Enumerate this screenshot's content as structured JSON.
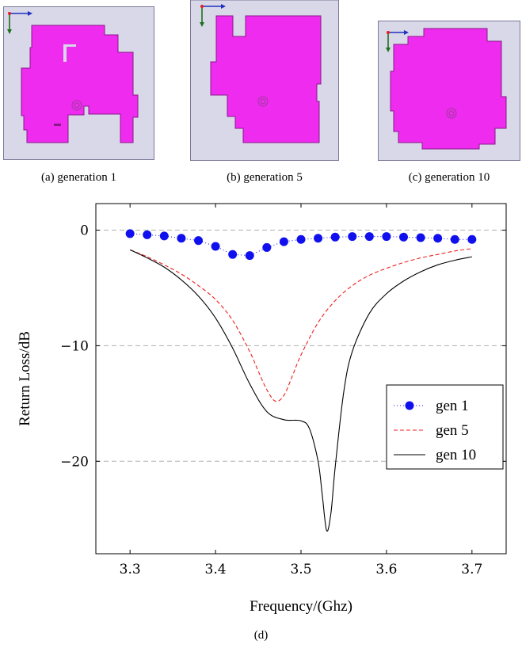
{
  "panels": [
    {
      "caption": "(a) generation 1"
    },
    {
      "caption": "(b) generation 5"
    },
    {
      "caption": "(c) generation 10"
    }
  ],
  "colors": {
    "panel_bg": "#d8d8e8",
    "panel_border": "#7a7a9a",
    "antenna": "#ee2bee",
    "antenna_edge": "#8a1a8a",
    "axis_x": "#2030c0",
    "axis_y": "#207020",
    "origin": "#e02020"
  },
  "chart_caption": "(d)",
  "chart_data": {
    "type": "line",
    "xlabel": "Frequency/(Ghz)",
    "ylabel": "Return Loss/dB",
    "xlim": [
      3.26,
      3.74
    ],
    "ylim": [
      -28,
      2.3
    ],
    "xticks": [
      3.3,
      3.4,
      3.5,
      3.6,
      3.7
    ],
    "xtick_labels": [
      "3.3",
      "3.4",
      "3.5",
      "3.6",
      "3.7"
    ],
    "yticks": [
      0,
      -10,
      -20
    ],
    "ytick_labels": [
      "0",
      "−10",
      "−20"
    ],
    "grid": "horizontal dashed",
    "legend_position": "right",
    "series": [
      {
        "name": "gen 1",
        "style": "dots",
        "color": "#1010ee",
        "x": [
          3.3,
          3.32,
          3.34,
          3.36,
          3.38,
          3.4,
          3.42,
          3.44,
          3.46,
          3.48,
          3.5,
          3.52,
          3.54,
          3.56,
          3.58,
          3.6,
          3.62,
          3.64,
          3.66,
          3.68,
          3.7
        ],
        "y": [
          -0.3,
          -0.4,
          -0.5,
          -0.7,
          -0.9,
          -1.4,
          -2.1,
          -2.2,
          -1.5,
          -1.0,
          -0.8,
          -0.7,
          -0.6,
          -0.55,
          -0.55,
          -0.55,
          -0.6,
          -0.65,
          -0.7,
          -0.8,
          -0.8
        ]
      },
      {
        "name": "gen 5",
        "style": "dashed",
        "color": "#ee2020",
        "x": [
          3.3,
          3.32,
          3.34,
          3.36,
          3.38,
          3.4,
          3.42,
          3.44,
          3.45,
          3.46,
          3.47,
          3.48,
          3.49,
          3.5,
          3.52,
          3.54,
          3.56,
          3.58,
          3.6,
          3.62,
          3.64,
          3.66,
          3.68,
          3.7
        ],
        "y": [
          -1.7,
          -2.3,
          -3.0,
          -3.8,
          -4.8,
          -6.0,
          -7.8,
          -10.5,
          -12.2,
          -13.8,
          -14.8,
          -14.3,
          -12.6,
          -10.8,
          -8.0,
          -6.1,
          -4.8,
          -3.9,
          -3.3,
          -2.8,
          -2.4,
          -2.1,
          -1.8,
          -1.6
        ]
      },
      {
        "name": "gen 10",
        "style": "solid",
        "color": "#000000",
        "x": [
          3.3,
          3.32,
          3.34,
          3.36,
          3.38,
          3.4,
          3.42,
          3.44,
          3.46,
          3.48,
          3.5,
          3.51,
          3.52,
          3.525,
          3.53,
          3.535,
          3.54,
          3.55,
          3.56,
          3.58,
          3.6,
          3.62,
          3.64,
          3.66,
          3.68,
          3.7
        ],
        "y": [
          -1.7,
          -2.4,
          -3.2,
          -4.3,
          -5.7,
          -7.6,
          -10.2,
          -13.3,
          -15.7,
          -16.4,
          -16.5,
          -17.2,
          -20.0,
          -23.0,
          -26.0,
          -24.5,
          -20.5,
          -14.0,
          -10.5,
          -7.2,
          -5.5,
          -4.4,
          -3.6,
          -3.0,
          -2.6,
          -2.3
        ]
      }
    ]
  }
}
